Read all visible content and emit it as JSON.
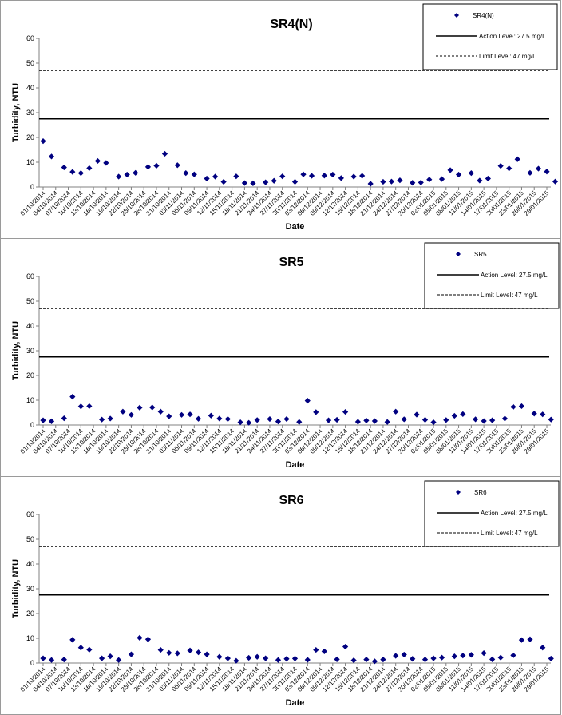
{
  "colors": {
    "marker": "#000080",
    "line": "#000000",
    "axis": "#808080"
  },
  "common": {
    "ylabel": "Turbidity, NTU",
    "xlabel": "Date",
    "ylim": [
      0,
      60
    ],
    "yticks": [
      "0",
      "10",
      "20",
      "30",
      "40",
      "50",
      "60"
    ],
    "action_label": "Action Level: 27.5 mg/L",
    "limit_label": "Limit Level: 47 mg/L",
    "action_level": 27.5,
    "limit_level": 47,
    "dates": [
      "01/10/2014",
      "04/10/2014",
      "07/10/2014",
      "10/10/2014",
      "13/10/2014",
      "16/10/2014",
      "19/10/2014",
      "22/10/2014",
      "25/10/2014",
      "28/10/2014",
      "31/10/2014",
      "03/11/2014",
      "06/11/2014",
      "09/11/2014",
      "12/11/2014",
      "15/11/2014",
      "18/11/2014",
      "21/11/2014",
      "24/11/2014",
      "27/11/2014",
      "30/11/2014",
      "03/12/2014",
      "06/12/2014",
      "09/12/2014",
      "12/12/2014",
      "15/12/2014",
      "18/12/2014",
      "21/12/2014",
      "24/12/2014",
      "27/12/2014",
      "30/12/2014",
      "02/01/2015",
      "05/01/2015",
      "08/01/2015",
      "11/01/2015",
      "14/01/2015",
      "17/01/2015",
      "20/01/2015",
      "23/01/2015",
      "26/01/2015",
      "29/01/2015"
    ]
  },
  "chart_data": [
    {
      "type": "scatter",
      "title": "SR4(N)",
      "series_name": "SR4(N)",
      "xlabel": "Date",
      "ylabel": "Turbidity, NTU",
      "ylim": [
        0,
        60
      ],
      "days": [
        0,
        2,
        5,
        7,
        9,
        11,
        13,
        15,
        18,
        20,
        22,
        25,
        27,
        29,
        32,
        34,
        36,
        39,
        41,
        43,
        46,
        48,
        50,
        53,
        55,
        57,
        60,
        62,
        64,
        67,
        69,
        71,
        74,
        76,
        78,
        81,
        83,
        85,
        88,
        90,
        92,
        95,
        97,
        99,
        102,
        104,
        106,
        109,
        111,
        113,
        116,
        118,
        120,
        122
      ],
      "values": [
        18.5,
        12.3,
        7.9,
        6.1,
        5.6,
        7.6,
        10.5,
        9.7,
        4.2,
        5.0,
        5.7,
        8.1,
        8.6,
        13.4,
        8.8,
        5.6,
        5.1,
        3.4,
        4.2,
        2.1,
        4.3,
        1.6,
        1.5,
        1.9,
        2.5,
        4.3,
        2.1,
        5.1,
        4.5,
        4.6,
        5.0,
        3.6,
        4.2,
        4.5,
        1.3,
        2.1,
        2.2,
        2.7,
        1.7,
        1.8,
        3.0,
        3.2,
        6.8,
        5.0,
        5.6,
        2.6,
        3.4,
        8.5,
        7.5,
        11.2,
        5.7,
        7.4,
        6.2,
        2.2
      ]
    },
    {
      "type": "scatter",
      "title": "SR5",
      "series_name": "SR5",
      "xlabel": "Date",
      "ylabel": "Turbidity, NTU",
      "ylim": [
        0,
        60
      ],
      "days": [
        0,
        2,
        5,
        7,
        9,
        11,
        14,
        16,
        19,
        21,
        23,
        26,
        28,
        30,
        33,
        35,
        37,
        40,
        42,
        44,
        47,
        49,
        51,
        54,
        56,
        58,
        61,
        63,
        65,
        68,
        70,
        72,
        75,
        77,
        79,
        82,
        84,
        86,
        89,
        91,
        93,
        96,
        98,
        100,
        103,
        105,
        107,
        110,
        112,
        114,
        117,
        119,
        121
      ],
      "values": [
        1.9,
        1.5,
        2.7,
        11.4,
        7.5,
        7.6,
        2.2,
        2.6,
        5.4,
        4.1,
        7.0,
        7.1,
        5.4,
        3.5,
        4.1,
        4.3,
        2.5,
        3.8,
        2.6,
        2.4,
        1.1,
        0.9,
        2.0,
        2.4,
        1.4,
        2.4,
        1.2,
        9.8,
        5.2,
        1.9,
        2.1,
        5.3,
        1.3,
        1.8,
        1.6,
        1.2,
        5.4,
        2.3,
        4.2,
        2.1,
        1.1,
        2.0,
        3.7,
        4.4,
        2.3,
        1.6,
        1.9,
        2.6,
        7.3,
        7.6,
        4.6,
        4.3,
        2.2
      ]
    },
    {
      "type": "scatter",
      "title": "SR6",
      "series_name": "SR6",
      "xlabel": "Date",
      "ylabel": "Turbidity, NTU",
      "ylim": [
        0,
        60
      ],
      "days": [
        0,
        2,
        5,
        7,
        9,
        11,
        14,
        16,
        18,
        21,
        23,
        25,
        28,
        30,
        32,
        35,
        37,
        39,
        42,
        44,
        46,
        49,
        51,
        53,
        56,
        58,
        60,
        63,
        65,
        67,
        70,
        72,
        74,
        77,
        79,
        81,
        84,
        86,
        88,
        91,
        93,
        95,
        98,
        100,
        102,
        105,
        107,
        109,
        112,
        114,
        116,
        119,
        121
      ],
      "values": [
        1.9,
        1.2,
        1.4,
        9.4,
        6.2,
        5.4,
        1.9,
        2.7,
        1.2,
        3.5,
        10.2,
        9.6,
        5.3,
        4.1,
        3.9,
        5.1,
        4.3,
        3.5,
        2.5,
        1.9,
        0.9,
        2.1,
        2.5,
        1.9,
        1.2,
        1.7,
        1.8,
        1.3,
        5.3,
        4.7,
        1.5,
        6.6,
        1.1,
        1.4,
        0.7,
        1.4,
        2.9,
        3.4,
        1.7,
        1.4,
        1.9,
        2.2,
        2.7,
        3.0,
        3.3,
        4.0,
        1.5,
        2.2,
        3.1,
        9.3,
        9.6,
        6.2,
        1.8
      ]
    }
  ]
}
